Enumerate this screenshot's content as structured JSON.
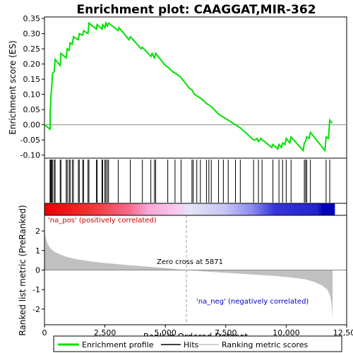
{
  "chart_data": [
    {
      "type": "line",
      "panel": "enrichment-profile",
      "title": "Enrichment plot: CAAGGAT,MIR-362",
      "ylabel": "Enrichment score (ES)",
      "ylim": [
        -0.11,
        0.355
      ],
      "yticks": [
        -0.1,
        -0.05,
        0.0,
        0.05,
        0.1,
        0.15,
        0.2,
        0.25,
        0.3,
        0.35
      ],
      "ytick_labels": [
        "-0.10",
        "-0.05",
        "0.00",
        "0.05",
        "0.10",
        "0.15",
        "0.20",
        "0.25",
        "0.30",
        "0.35"
      ],
      "xlim": [
        0,
        12500
      ],
      "line_color": "#00e000",
      "series": [
        {
          "name": "Enrichment profile",
          "x": [
            0,
            230,
            240,
            280,
            290,
            330,
            345,
            400,
            440,
            650,
            680,
            900,
            940,
            1020,
            1060,
            1150,
            1200,
            1400,
            1440,
            1580,
            1620,
            1800,
            1840,
            2150,
            2180,
            2380,
            2410,
            2500,
            2540,
            2600,
            2650,
            3050,
            3080,
            3500,
            3550,
            4000,
            4050,
            4400,
            4450,
            4550,
            4600,
            5000,
            5100,
            5300,
            5600,
            6000,
            6100,
            6200,
            6300,
            6500,
            6700,
            6800,
            6900,
            7200,
            7400,
            7600,
            7900,
            8000,
            8100,
            8650,
            8700,
            8800,
            8850,
            8950,
            9000,
            9100,
            9400,
            9450,
            9650,
            9700,
            9800,
            9850,
            9950,
            10000,
            10150,
            10200,
            10700,
            10750,
            10800,
            10850,
            10950,
            11000,
            11600,
            11650,
            11750,
            11800,
            11900
          ],
          "y": [
            0.0,
            -0.015,
            0.05,
            0.11,
            0.11,
            0.165,
            0.17,
            0.175,
            0.215,
            0.195,
            0.235,
            0.22,
            0.25,
            0.245,
            0.27,
            0.265,
            0.29,
            0.28,
            0.3,
            0.295,
            0.31,
            0.3,
            0.335,
            0.315,
            0.33,
            0.315,
            0.33,
            0.32,
            0.335,
            0.325,
            0.335,
            0.31,
            0.32,
            0.28,
            0.29,
            0.25,
            0.255,
            0.225,
            0.235,
            0.22,
            0.235,
            0.195,
            0.19,
            0.175,
            0.16,
            0.12,
            0.115,
            0.1,
            0.095,
            0.085,
            0.07,
            0.065,
            0.06,
            0.035,
            0.025,
            0.015,
            0.0,
            -0.005,
            -0.01,
            -0.05,
            -0.05,
            -0.045,
            -0.055,
            -0.045,
            -0.05,
            -0.055,
            -0.075,
            -0.065,
            -0.08,
            -0.065,
            -0.075,
            -0.06,
            -0.065,
            -0.045,
            -0.06,
            -0.04,
            -0.085,
            -0.06,
            -0.055,
            -0.04,
            -0.045,
            -0.025,
            -0.085,
            -0.04,
            -0.045,
            0.015,
            0.005
          ]
        }
      ]
    },
    {
      "type": "scatter",
      "panel": "hits",
      "xlim": [
        0,
        12500
      ],
      "hit_color": "#000000",
      "hits_x": [
        230,
        250,
        280,
        300,
        330,
        400,
        440,
        650,
        680,
        900,
        940,
        1020,
        1060,
        1150,
        1200,
        1400,
        1440,
        1580,
        1620,
        1800,
        1840,
        2150,
        2180,
        2380,
        2410,
        2500,
        2540,
        2600,
        2650,
        3050,
        3550,
        4050,
        4400,
        4550,
        4600,
        5100,
        5400,
        5650,
        6100,
        6150,
        6300,
        6450,
        6700,
        6800,
        6900,
        7200,
        7400,
        7600,
        7900,
        8100,
        8650,
        8850,
        9000,
        9450,
        9700,
        9850,
        10000,
        10200,
        10750,
        10800,
        10850,
        11000,
        11650,
        11800
      ],
      "heatmap": {
        "stops": [
          {
            "x": 0,
            "color": "#e80000"
          },
          {
            "x": 1800,
            "color": "#f33030"
          },
          {
            "x": 3500,
            "color": "#f76a8a"
          },
          {
            "x": 4300,
            "color": "#f6a8d6"
          },
          {
            "x": 5400,
            "color": "#f8c8ec"
          },
          {
            "x": 6000,
            "color": "#e4e4f8"
          },
          {
            "x": 7500,
            "color": "#c4c4f4"
          },
          {
            "x": 8600,
            "color": "#8a8aee"
          },
          {
            "x": 9500,
            "color": "#3636dc"
          },
          {
            "x": 11300,
            "color": "#2222d0"
          },
          {
            "x": 11500,
            "color": "#0000b8"
          },
          {
            "x": 12000,
            "color": "#0000b8"
          }
        ]
      }
    },
    {
      "type": "area",
      "panel": "ranked-list-metric",
      "ylabel": "Ranked list metric (PreRanked)",
      "xlabel": "Rank in Ordered Dataset",
      "ylim": [
        -2.8,
        2.8
      ],
      "yticks": [
        -2,
        -1,
        0,
        1,
        2
      ],
      "ytick_labels": [
        "-2",
        "-1",
        "0",
        "1",
        "2"
      ],
      "xlim": [
        0,
        12500
      ],
      "xticks": [
        0,
        2500,
        5000,
        7500,
        10000,
        12500
      ],
      "xtick_labels": [
        "0",
        "2,500",
        "5,000",
        "7,500",
        "10,000",
        "12,500"
      ],
      "fill_color": "#c0c0c0",
      "x": [
        0,
        30,
        80,
        150,
        250,
        400,
        600,
        900,
        1300,
        1800,
        2500,
        3500,
        4500,
        5200,
        5871,
        6500,
        7500,
        8500,
        9500,
        10200,
        10800,
        11200,
        11500,
        11700,
        11800,
        11850,
        11880,
        11900,
        11910,
        11920
      ],
      "values": [
        2.1,
        1.8,
        1.5,
        1.3,
        1.1,
        0.95,
        0.82,
        0.68,
        0.56,
        0.46,
        0.36,
        0.25,
        0.15,
        0.08,
        0.0,
        -0.06,
        -0.14,
        -0.22,
        -0.3,
        -0.38,
        -0.48,
        -0.62,
        -0.8,
        -1.0,
        -1.25,
        -1.5,
        -1.8,
        -2.1,
        -2.4,
        -2.55
      ],
      "zero_cross_x": 5871,
      "annotations": {
        "pos_label": "'na_pos' (positively correlated)",
        "neg_label": "'na_neg' (negatively correlated)",
        "zero_cross": "Zero cross at 5871"
      }
    }
  ],
  "legend": {
    "items": [
      {
        "label": "Enrichment profile",
        "color": "#00e000"
      },
      {
        "label": "Hits",
        "color": "#000000"
      },
      {
        "label": "Ranking metric scores",
        "color": "#c0c0c0"
      }
    ]
  },
  "colors": {
    "pos_label": "#cc0000",
    "neg_label": "#0000cc"
  }
}
